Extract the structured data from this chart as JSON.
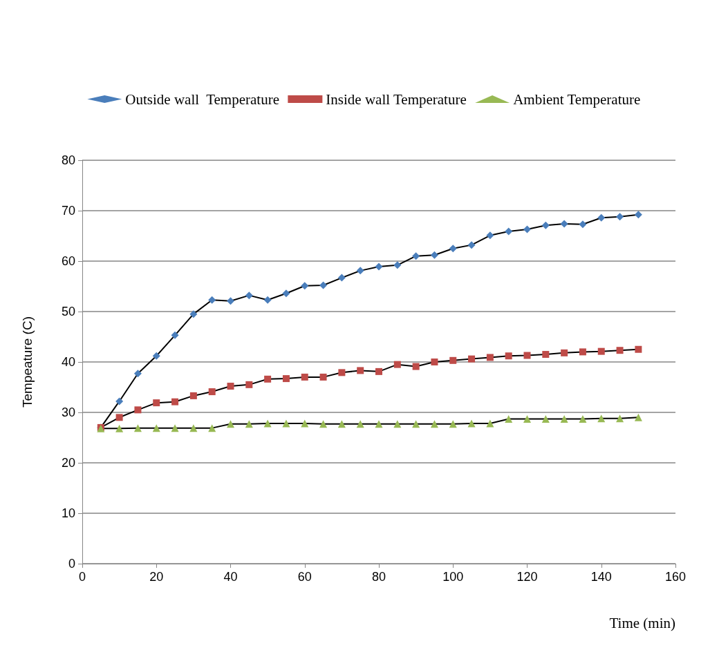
{
  "chart_data": {
    "type": "line",
    "xlabel": "Time (min)",
    "ylabel": "Tempeature (C)",
    "x": [
      5,
      10,
      15,
      20,
      25,
      30,
      35,
      40,
      45,
      50,
      55,
      60,
      65,
      70,
      75,
      80,
      85,
      90,
      95,
      100,
      105,
      110,
      115,
      120,
      125,
      130,
      135,
      140,
      145,
      150
    ],
    "series": [
      {
        "name": "Outside wall  Temperature",
        "color": "#4a7ebb",
        "marker": "diamond",
        "values": [
          27.0,
          32.2,
          37.7,
          41.2,
          45.3,
          49.5,
          52.3,
          52.1,
          53.2,
          52.3,
          53.6,
          55.1,
          55.2,
          56.7,
          58.1,
          58.9,
          59.2,
          61.0,
          61.2,
          62.5,
          63.2,
          65.1,
          65.9,
          66.3,
          67.1,
          67.4,
          67.3,
          68.6,
          68.8,
          69.2
        ]
      },
      {
        "name": "Inside wall Temperature",
        "color": "#be4b48",
        "marker": "square",
        "values": [
          27.0,
          29.0,
          30.5,
          31.9,
          32.1,
          33.3,
          34.1,
          35.2,
          35.5,
          36.6,
          36.7,
          37.0,
          37.0,
          37.9,
          38.3,
          38.1,
          39.5,
          39.1,
          40.0,
          40.3,
          40.6,
          40.9,
          41.2,
          41.3,
          41.5,
          41.8,
          42.0,
          42.1,
          42.3,
          42.5
        ]
      },
      {
        "name": "Ambient Temperature",
        "color": "#98b954",
        "marker": "triangle",
        "values": [
          26.8,
          26.8,
          26.9,
          26.9,
          26.9,
          26.9,
          26.9,
          27.7,
          27.7,
          27.8,
          27.8,
          27.8,
          27.7,
          27.7,
          27.7,
          27.7,
          27.7,
          27.7,
          27.7,
          27.7,
          27.8,
          27.8,
          28.7,
          28.7,
          28.7,
          28.7,
          28.7,
          28.8,
          28.8,
          29.0
        ]
      }
    ],
    "xlim": [
      0,
      160
    ],
    "xticks": [
      0,
      20,
      40,
      60,
      80,
      100,
      120,
      140,
      160
    ],
    "ylim": [
      0,
      80
    ],
    "yticks": [
      0,
      10,
      20,
      30,
      40,
      50,
      60,
      70,
      80
    ],
    "grid": "y",
    "legend": "top",
    "line_style": "solid"
  }
}
